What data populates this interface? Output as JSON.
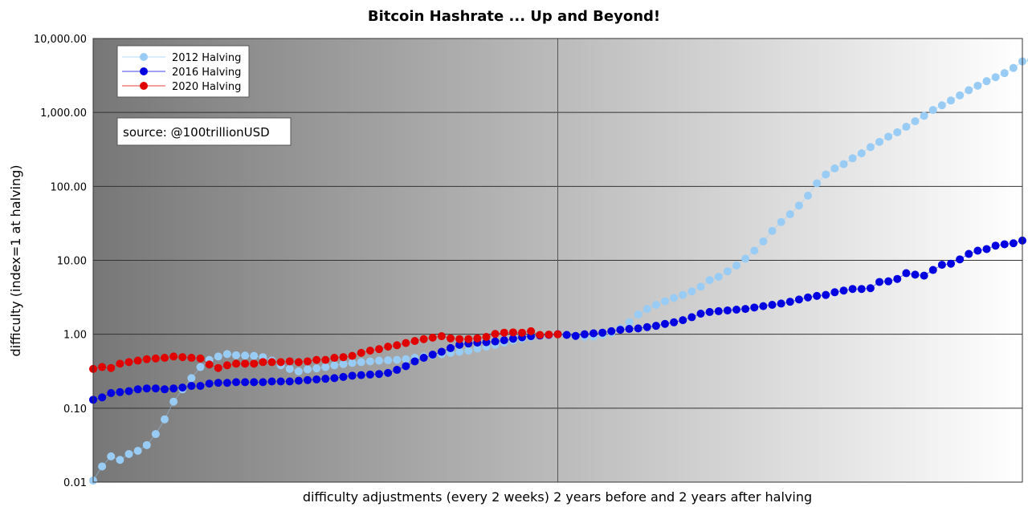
{
  "chart_data": {
    "type": "scatter",
    "title": "Bitcoin Hashrate ... Up and Beyond!",
    "xlabel": "difficulty adjustments (every 2 weeks) 2 years before and 2 years after halving",
    "ylabel": "difficulty (index=1 at halving)",
    "y_scale": "log",
    "ylim": [
      0.01,
      10000
    ],
    "xlim": [
      0,
      104
    ],
    "halving_index": 52,
    "y_ticks": [
      {
        "value": 0.01,
        "label": "0.01"
      },
      {
        "value": 0.1,
        "label": "0.10"
      },
      {
        "value": 1,
        "label": "1.00"
      },
      {
        "value": 10,
        "label": "10.00"
      },
      {
        "value": 100,
        "label": "100.00"
      },
      {
        "value": 1000,
        "label": "1,000.00"
      },
      {
        "value": 10000,
        "label": "10,000.00"
      }
    ],
    "grid": true,
    "legend_position": "top-left",
    "annotation": "source: @100trillionUSD",
    "series": [
      {
        "name": "2012 Halving",
        "color": "#99ccf5",
        "values": [
          0.0105,
          0.0163,
          0.0223,
          0.02,
          0.024,
          0.0265,
          0.0317,
          0.0447,
          0.0707,
          0.1225,
          0.18,
          0.255,
          0.36,
          0.45,
          0.5,
          0.54,
          0.52,
          0.515,
          0.51,
          0.49,
          0.44,
          0.38,
          0.34,
          0.315,
          0.335,
          0.345,
          0.36,
          0.38,
          0.395,
          0.41,
          0.42,
          0.43,
          0.44,
          0.445,
          0.45,
          0.46,
          0.48,
          0.5,
          0.52,
          0.54,
          0.56,
          0.58,
          0.6,
          0.64,
          0.68,
          0.72,
          0.77,
          0.82,
          0.87,
          0.92,
          0.96,
          0.98,
          1.0,
          0.98,
          0.95,
          0.92,
          0.93,
          0.98,
          1.05,
          1.2,
          1.45,
          1.85,
          2.2,
          2.5,
          2.8,
          3.1,
          3.4,
          3.8,
          4.4,
          5.4,
          6.0,
          7.1,
          8.5,
          10.5,
          13.5,
          18.0,
          25.0,
          33.0,
          42.0,
          55.0,
          75.0,
          110.0,
          145.0,
          175.0,
          200.0,
          240.0,
          280.0,
          340.0,
          400.0,
          470.0,
          540.0,
          640.0,
          760.0,
          900.0,
          1080,
          1250,
          1450,
          1700,
          2000,
          2300,
          2650,
          3000,
          3400,
          4000,
          4900,
          5100
        ]
      },
      {
        "name": "2016 Halving",
        "color": "#0000e0",
        "values": [
          0.13,
          0.14,
          0.16,
          0.165,
          0.17,
          0.18,
          0.185,
          0.185,
          0.18,
          0.185,
          0.19,
          0.2,
          0.2,
          0.215,
          0.22,
          0.22,
          0.225,
          0.225,
          0.225,
          0.225,
          0.23,
          0.23,
          0.23,
          0.235,
          0.24,
          0.245,
          0.25,
          0.255,
          0.265,
          0.275,
          0.28,
          0.285,
          0.29,
          0.3,
          0.33,
          0.37,
          0.43,
          0.48,
          0.53,
          0.58,
          0.65,
          0.72,
          0.75,
          0.77,
          0.78,
          0.8,
          0.83,
          0.87,
          0.91,
          0.94,
          0.96,
          0.98,
          1.0,
          0.98,
          0.95,
          1.0,
          1.03,
          1.05,
          1.1,
          1.15,
          1.18,
          1.2,
          1.25,
          1.3,
          1.38,
          1.45,
          1.55,
          1.7,
          1.9,
          2.0,
          2.05,
          2.1,
          2.15,
          2.2,
          2.3,
          2.4,
          2.5,
          2.6,
          2.75,
          2.95,
          3.15,
          3.3,
          3.4,
          3.7,
          3.9,
          4.1,
          4.1,
          4.2,
          5.1,
          5.2,
          5.6,
          6.7,
          6.4,
          6.2,
          7.4,
          8.7,
          9.0,
          10.3,
          12.2,
          13.5,
          14.2,
          15.8,
          16.5,
          17.0,
          18.5
        ]
      },
      {
        "name": "2020 Halving",
        "color": "#e00000",
        "values": [
          0.34,
          0.36,
          0.35,
          0.4,
          0.42,
          0.44,
          0.46,
          0.47,
          0.48,
          0.5,
          0.49,
          0.48,
          0.47,
          0.39,
          0.35,
          0.38,
          0.4,
          0.4,
          0.4,
          0.42,
          0.42,
          0.42,
          0.43,
          0.42,
          0.43,
          0.45,
          0.45,
          0.48,
          0.49,
          0.51,
          0.56,
          0.6,
          0.63,
          0.68,
          0.71,
          0.76,
          0.81,
          0.86,
          0.9,
          0.94,
          0.88,
          0.86,
          0.86,
          0.88,
          0.92,
          1.01,
          1.05,
          1.06,
          1.05,
          1.1,
          0.98,
          0.99,
          1.0
        ]
      }
    ]
  }
}
